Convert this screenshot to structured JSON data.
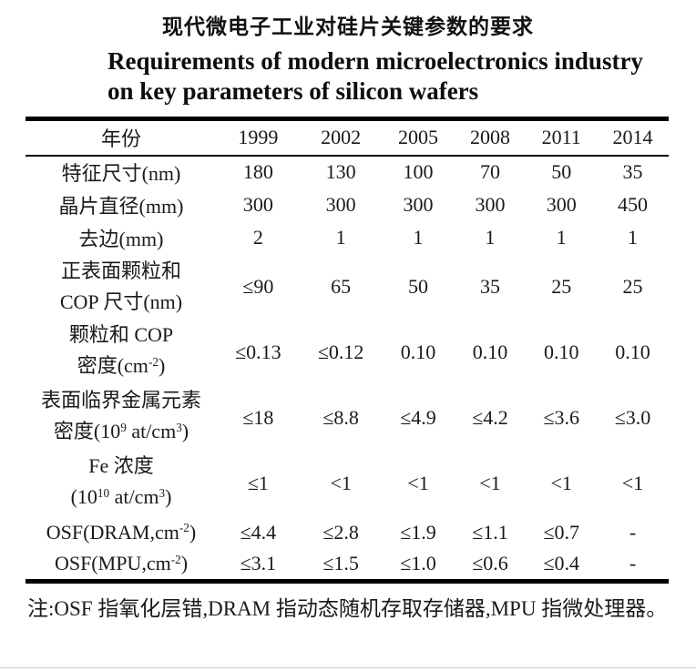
{
  "page": {
    "title_zh": "现代微电子工业对硅片关键参数的要求",
    "title_en_line1": "Requirements of modern microelectronics industry",
    "title_en_line2": "on key parameters of silicon wafers",
    "footnote": "注:OSF 指氧化层错,DRAM 指动态随机存取存储器,MPU 指微处理器。"
  },
  "table": {
    "header": [
      "年份",
      "1999",
      "2002",
      "2005",
      "2008",
      "2011",
      "2014"
    ],
    "rows": [
      {
        "label_lines": [
          "特征尺寸(nm)"
        ],
        "values": [
          "180",
          "130",
          "100",
          "70",
          "50",
          "35"
        ]
      },
      {
        "label_lines": [
          "晶片直径(mm)"
        ],
        "values": [
          "300",
          "300",
          "300",
          "300",
          "300",
          "450"
        ]
      },
      {
        "label_lines": [
          "去边(mm)"
        ],
        "values": [
          "2",
          "1",
          "1",
          "1",
          "1",
          "1"
        ]
      },
      {
        "label_lines": [
          "正表面颗粒和",
          "COP 尺寸(nm)"
        ],
        "values": [
          "≤90",
          "65",
          "50",
          "35",
          "25",
          "25"
        ]
      },
      {
        "label_lines": [
          "颗粒和 COP",
          "密度(cm^{-2})"
        ],
        "values": [
          "≤0.13",
          "≤0.12",
          "0.10",
          "0.10",
          "0.10",
          "0.10"
        ]
      },
      {
        "label_lines": [
          "表面临界金属元素",
          "密度(10^{9} at/cm^{3})"
        ],
        "values": [
          "≤18",
          "≤8.8",
          "≤4.9",
          "≤4.2",
          "≤3.6",
          "≤3.0"
        ]
      },
      {
        "label_lines": [
          "Fe 浓度",
          "(10^{10} at/cm^{3})"
        ],
        "values": [
          "≤1",
          "<1",
          "<1",
          "<1",
          "<1",
          "<1"
        ]
      },
      {
        "label_lines": [
          "OSF(DRAM,cm^{-2})"
        ],
        "values": [
          "≤4.4",
          "≤2.8",
          "≤1.9",
          "≤1.1",
          "≤0.7",
          "-"
        ]
      },
      {
        "label_lines": [
          "OSF(MPU,cm^{-2})"
        ],
        "values": [
          "≤3.1",
          "≤1.5",
          "≤1.0",
          "≤0.6",
          "≤0.4",
          "-"
        ]
      }
    ]
  },
  "colors": {
    "background": "#ffffff",
    "text": "#1a1a1a",
    "rule": "#000000",
    "faint_bottom_line": "#c9c9c9"
  }
}
